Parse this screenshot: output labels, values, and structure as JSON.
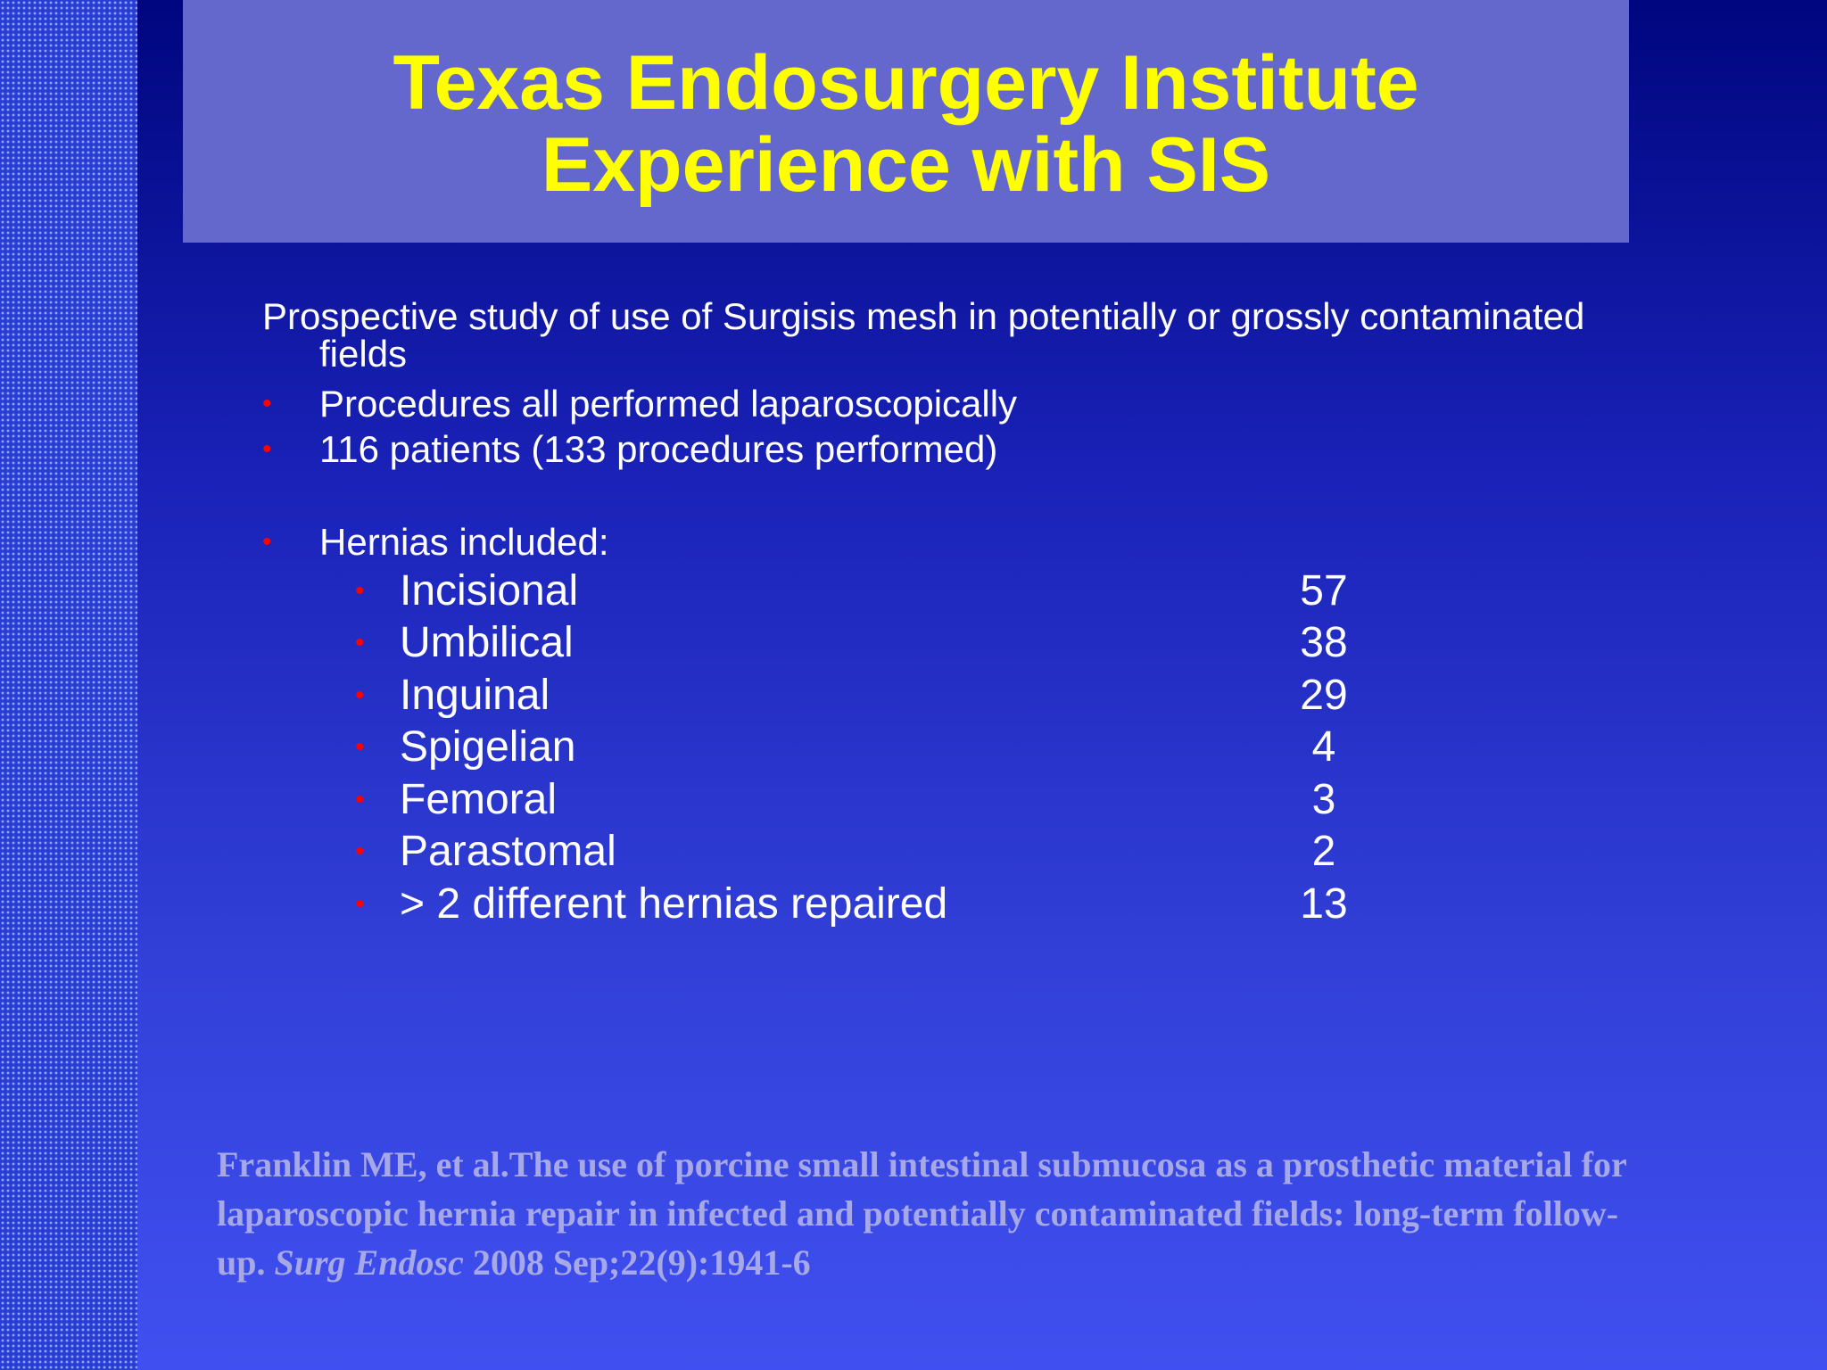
{
  "slide": {
    "title_line1": "Texas Endosurgery Institute",
    "title_line2": "Experience with SIS",
    "intro_line1": "Prospective study of use of  Surgisis mesh in potentially or grossly contaminated",
    "intro_line2": "fields",
    "bullets": [
      "Procedures all performed laparoscopically",
      "116 patients (133 procedures performed)",
      "Hernias included:"
    ],
    "hernias": [
      {
        "label": "Incisional",
        "count": "57"
      },
      {
        "label": "Umbilical",
        "count": "38"
      },
      {
        "label": "Inguinal",
        "count": "29"
      },
      {
        "label": "Spigelian",
        "count": "4"
      },
      {
        "label": "Femoral",
        "count": "3"
      },
      {
        "label": "Parastomal",
        "count": "2"
      },
      {
        "label": "> 2 different hernias repaired",
        "count": "13"
      }
    ],
    "citation": {
      "main": "Franklin ME, et al.The use of porcine small intestinal submucosa as a prosthetic material for laparoscopic hernia repair in infected and potentially contaminated fields: long-term follow-up. ",
      "journal": "Surg Endosc",
      "details": " 2008 Sep;22(9):1941-6"
    },
    "colors": {
      "title_text": "#ffff00",
      "title_box": "#6468cc",
      "bullet": "#ff0000",
      "body_text": "#ffffff",
      "citation_text": "#a6a8e8"
    }
  }
}
